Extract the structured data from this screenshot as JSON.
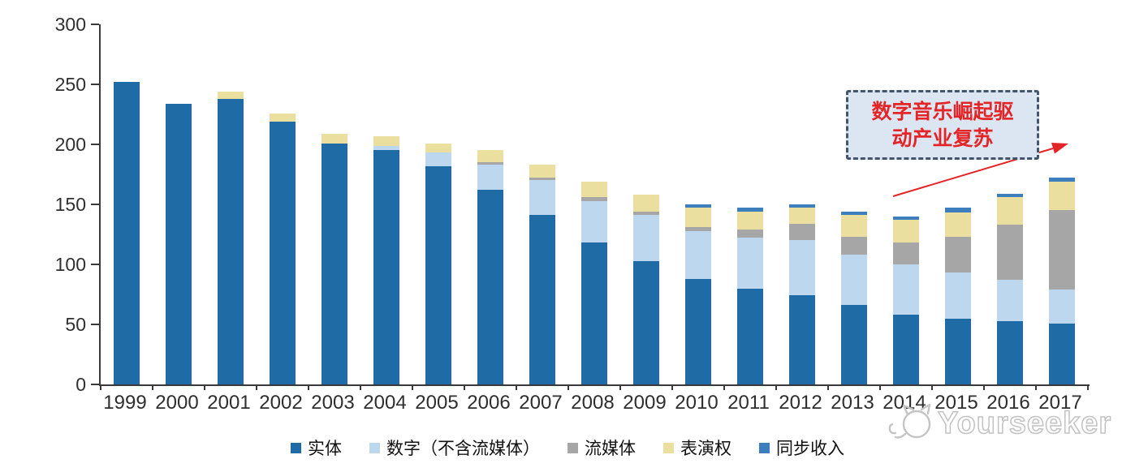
{
  "chart_data": {
    "type": "bar",
    "stacked": true,
    "title": "",
    "xlabel": "",
    "ylabel": "",
    "ylim": [
      0,
      300
    ],
    "yticks": [
      0,
      50,
      100,
      150,
      200,
      250,
      300
    ],
    "grid": false,
    "legend_position": "bottom",
    "categories": [
      "1999",
      "2000",
      "2001",
      "2002",
      "2003",
      "2004",
      "2005",
      "2006",
      "2007",
      "2008",
      "2009",
      "2010",
      "2011",
      "2012",
      "2013",
      "2014",
      "2015",
      "2016",
      "2017"
    ],
    "series": [
      {
        "name": "实体",
        "color": "#1f6ba5",
        "values": [
          252,
          234,
          238,
          219,
          201,
          195,
          182,
          162,
          141,
          118,
          103,
          88,
          80,
          74,
          66,
          58,
          55,
          53,
          51
        ]
      },
      {
        "name": "数字（不含流媒体）",
        "color": "#bdd7ee",
        "values": [
          0,
          0,
          0,
          0,
          0,
          4,
          11,
          21,
          29,
          35,
          38,
          40,
          42,
          46,
          42,
          42,
          38,
          34,
          28
        ]
      },
      {
        "name": "流媒体",
        "color": "#a6a6a6",
        "values": [
          0,
          0,
          0,
          0,
          0,
          0,
          0,
          2,
          2,
          3,
          3,
          3,
          7,
          14,
          15,
          18,
          30,
          46,
          66
        ]
      },
      {
        "name": "表演权",
        "color": "#ebdfa0",
        "values": [
          0,
          0,
          6,
          7,
          8,
          8,
          8,
          10,
          11,
          13,
          14,
          16,
          15,
          13,
          18,
          19,
          20,
          23,
          24
        ]
      },
      {
        "name": "同步收入",
        "color": "#3d7fbd",
        "values": [
          0,
          0,
          0,
          0,
          0,
          0,
          0,
          0,
          0,
          0,
          0,
          3,
          3,
          3,
          3,
          3,
          4,
          3,
          3
        ]
      }
    ]
  },
  "annotation": {
    "line1": "数字音乐崛起驱",
    "line2": "动产业复苏",
    "box_fill": "#dce6f2",
    "border_color": "#44546a",
    "text_color": "#e42527",
    "arrow_color": "#e42527"
  },
  "watermark": {
    "text": "Yourseeker"
  },
  "colors": {
    "axis": "#3a3a3a",
    "tick_label": "#303030",
    "background": "#ffffff"
  }
}
